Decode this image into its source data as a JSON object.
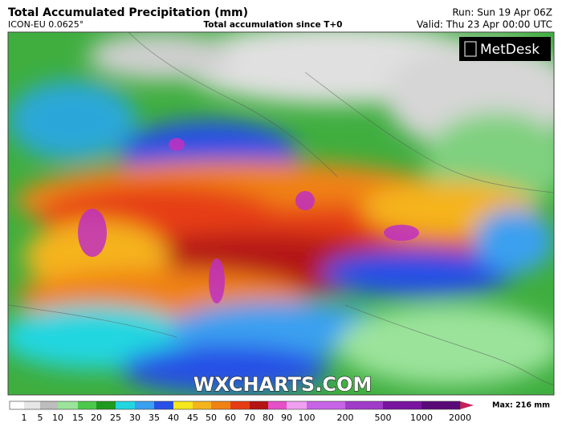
{
  "header": {
    "title": "Total Accumulated Precipitation (mm)",
    "model": "ICON-EU 0.0625°",
    "subtitle": "Total accumulation since T+0",
    "run": "Run: Sun 19 Apr 06Z",
    "valid": "Valid: Thu 23 Apr 00:00 UTC"
  },
  "logo": "MetDesk",
  "watermark": "WXCHARTS.COM",
  "colorbar": {
    "labels": [
      1,
      5,
      10,
      15,
      20,
      25,
      30,
      35,
      40,
      45,
      50,
      60,
      70,
      80,
      90,
      100,
      200,
      500,
      1000,
      2000
    ],
    "colors": [
      "#ffffff",
      "#e6e6e6",
      "#bdbdbd",
      "#9be39b",
      "#4cc84c",
      "#1e9a1e",
      "#22d6e0",
      "#3aa0f0",
      "#2850e6",
      "#f5e61e",
      "#f5b41e",
      "#f08214",
      "#e63c14",
      "#b41414",
      "#e650c8",
      "#f0a0f0",
      "#c864e6",
      "#a03cc8",
      "#7814a0",
      "#5a0a78",
      "#c81e5a"
    ],
    "max_label": "Max: 216 mm"
  }
}
